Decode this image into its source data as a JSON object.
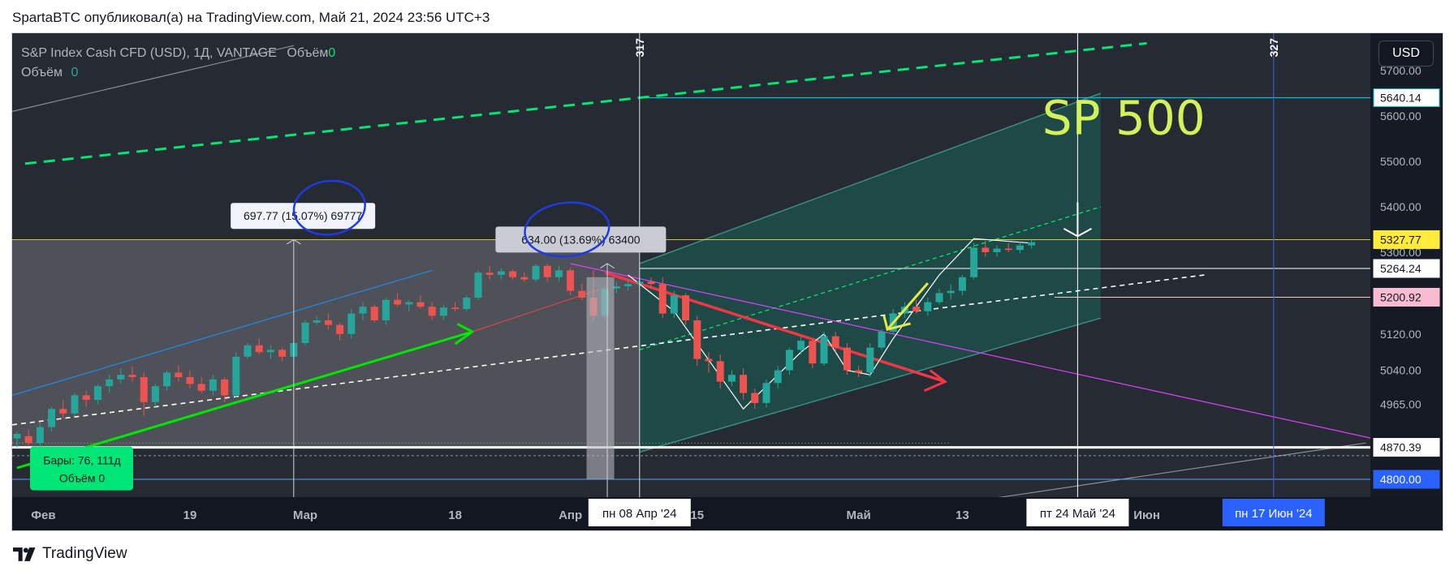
{
  "header": {
    "published": "SpartaBTC опубликовал(а) на TradingView.com, Май 21, 2024 23:56 UTC+3"
  },
  "legend": {
    "symbol": "S&P Index Cash CFD (USD), 1Д, VANTAGE",
    "volume_label": "Объём",
    "volume_value": "0",
    "volume2_label": "Объём",
    "volume2_value": "0"
  },
  "currency_button": "USD",
  "footer": {
    "brand": "TradingView"
  },
  "colors": {
    "up": "#26a69a",
    "down": "#ef5350",
    "green_line": "#00e676",
    "channel_fill": "#1f4f4a",
    "red_arrow": "#f23645",
    "magenta": "#e040fb",
    "cyan": "#00bcd4",
    "yellow_line": "#ffeb3b",
    "sp_label": "#d4f05a",
    "badge_green": "#00e676",
    "badge_blue": "#2962ff"
  },
  "chart_data": {
    "type": "candlestick",
    "title": "SP 500",
    "y_range": [
      4800,
      5760
    ],
    "x_index_range": [
      0,
      122
    ],
    "y_ticks": [
      "5700.00",
      "5600.00",
      "5500.00",
      "5400.00",
      "5300.00",
      "5120.00",
      "5040.00",
      "4965.00"
    ],
    "y_tick_values": [
      5700,
      5600,
      5500,
      5400,
      5300,
      5120,
      5040,
      4965
    ],
    "price_badges": [
      {
        "label": "5640.14",
        "value": 5640.14,
        "style": "cyan"
      },
      {
        "label": "5327.77",
        "value": 5327.77,
        "style": "yellow"
      },
      {
        "label": "5264.24",
        "value": 5264.24,
        "style": "white"
      },
      {
        "label": "5200.92",
        "value": 5200.92,
        "style": "pink"
      },
      {
        "label": "4870.39",
        "value": 4870.39,
        "style": "white"
      },
      {
        "label": "4800.00",
        "value": 4800.0,
        "style": "blue"
      }
    ],
    "x_labels": [
      {
        "label": "Фев",
        "index": 2
      },
      {
        "label": "19",
        "index": 15
      },
      {
        "label": "Мар",
        "index": 25
      },
      {
        "label": "18",
        "index": 38
      },
      {
        "label": "Апр",
        "index": 48
      },
      {
        "label": "15",
        "index": 59
      },
      {
        "label": "Май",
        "index": 73
      },
      {
        "label": "13",
        "index": 82
      },
      {
        "label": "Июн",
        "index": 98
      }
    ],
    "date_badges": [
      {
        "label": "пн 08 Апр '24",
        "index": 54
      },
      {
        "label": "пт 24 Май '24",
        "index": 92
      },
      {
        "label": "пн 17 Июн '24",
        "index": 109
      }
    ],
    "vertical_markers": [
      {
        "label": "317",
        "index": 54
      },
      {
        "label": "327",
        "index": 109
      }
    ],
    "measure_labels": [
      "697.77 (15.07%) 69777",
      "634.00 (13.69%) 63400"
    ],
    "bars_badge": {
      "line1": "Бары: 76, 111д",
      "line2": "Объём 0"
    },
    "candles": [
      [
        0,
        4890,
        4905,
        4870,
        4900
      ],
      [
        1,
        4895,
        4910,
        4875,
        4880
      ],
      [
        2,
        4880,
        4925,
        4870,
        4915
      ],
      [
        3,
        4915,
        4960,
        4905,
        4955
      ],
      [
        4,
        4955,
        4975,
        4935,
        4945
      ],
      [
        5,
        4945,
        4990,
        4940,
        4985
      ],
      [
        6,
        4985,
        4995,
        4960,
        4975
      ],
      [
        7,
        4975,
        5010,
        4965,
        5005
      ],
      [
        8,
        5005,
        5030,
        4990,
        5020
      ],
      [
        9,
        5020,
        5045,
        5010,
        5030
      ],
      [
        10,
        5030,
        5048,
        5015,
        5025
      ],
      [
        11,
        5025,
        5035,
        4940,
        4970
      ],
      [
        12,
        4970,
        5010,
        4960,
        5005
      ],
      [
        13,
        5005,
        5040,
        4995,
        5035
      ],
      [
        14,
        5035,
        5050,
        5015,
        5025
      ],
      [
        15,
        5025,
        5040,
        5000,
        5010
      ],
      [
        16,
        5010,
        5025,
        4990,
        4995
      ],
      [
        17,
        4995,
        5030,
        4985,
        5020
      ],
      [
        18,
        5020,
        5025,
        4970,
        4985
      ],
      [
        19,
        4985,
        5080,
        4980,
        5070
      ],
      [
        20,
        5070,
        5100,
        5065,
        5095
      ],
      [
        21,
        5095,
        5110,
        5075,
        5080
      ],
      [
        22,
        5080,
        5095,
        5065,
        5085
      ],
      [
        23,
        5085,
        5090,
        5060,
        5070
      ],
      [
        24,
        5070,
        5110,
        5060,
        5100
      ],
      [
        25,
        5100,
        5150,
        5095,
        5145
      ],
      [
        26,
        5145,
        5160,
        5140,
        5150
      ],
      [
        27,
        5150,
        5165,
        5130,
        5140
      ],
      [
        28,
        5140,
        5145,
        5105,
        5120
      ],
      [
        29,
        5120,
        5175,
        5110,
        5165
      ],
      [
        30,
        5165,
        5190,
        5150,
        5180
      ],
      [
        31,
        5180,
        5185,
        5145,
        5150
      ],
      [
        32,
        5150,
        5200,
        5140,
        5195
      ],
      [
        33,
        5195,
        5210,
        5180,
        5185
      ],
      [
        34,
        5185,
        5195,
        5170,
        5190
      ],
      [
        35,
        5190,
        5205,
        5175,
        5180
      ],
      [
        36,
        5180,
        5190,
        5150,
        5160
      ],
      [
        37,
        5160,
        5185,
        5150,
        5178
      ],
      [
        38,
        5178,
        5190,
        5170,
        5175
      ],
      [
        39,
        5175,
        5205,
        5170,
        5200
      ],
      [
        40,
        5200,
        5260,
        5195,
        5255
      ],
      [
        41,
        5255,
        5270,
        5240,
        5250
      ],
      [
        42,
        5250,
        5265,
        5240,
        5258
      ],
      [
        43,
        5258,
        5262,
        5240,
        5245
      ],
      [
        44,
        5245,
        5255,
        5235,
        5240
      ],
      [
        45,
        5240,
        5275,
        5235,
        5270
      ],
      [
        46,
        5270,
        5275,
        5235,
        5245
      ],
      [
        47,
        5245,
        5270,
        5235,
        5260
      ],
      [
        48,
        5260,
        5265,
        5205,
        5215
      ],
      [
        49,
        5215,
        5230,
        5195,
        5200
      ],
      [
        50,
        5200,
        5260,
        5150,
        5160
      ],
      [
        51,
        5160,
        5225,
        5150,
        5220
      ],
      [
        52,
        5220,
        5235,
        5210,
        5225
      ],
      [
        53,
        5225,
        5240,
        5215,
        5230
      ],
      [
        54,
        5230,
        5240,
        5215,
        5235
      ],
      [
        55,
        5235,
        5245,
        5220,
        5230
      ],
      [
        56,
        5230,
        5245,
        5155,
        5165
      ],
      [
        57,
        5165,
        5215,
        5155,
        5205
      ],
      [
        58,
        5205,
        5210,
        5140,
        5150
      ],
      [
        59,
        5150,
        5160,
        5050,
        5065
      ],
      [
        60,
        5065,
        5080,
        5035,
        5060
      ],
      [
        61,
        5060,
        5075,
        5000,
        5015
      ],
      [
        62,
        5015,
        5040,
        5005,
        5030
      ],
      [
        63,
        5030,
        5045,
        4975,
        4990
      ],
      [
        64,
        4990,
        5000,
        4955,
        4968
      ],
      [
        65,
        4968,
        5020,
        4958,
        5012
      ],
      [
        66,
        5012,
        5050,
        5000,
        5040
      ],
      [
        67,
        5040,
        5090,
        5030,
        5085
      ],
      [
        68,
        5085,
        5115,
        5075,
        5105
      ],
      [
        69,
        5105,
        5110,
        5045,
        5055
      ],
      [
        70,
        5055,
        5125,
        5050,
        5115
      ],
      [
        71,
        5115,
        5125,
        5080,
        5090
      ],
      [
        72,
        5090,
        5100,
        5030,
        5040
      ],
      [
        73,
        5040,
        5050,
        5025,
        5035
      ],
      [
        74,
        5035,
        5100,
        5025,
        5090
      ],
      [
        75,
        5090,
        5130,
        5085,
        5125
      ],
      [
        76,
        5125,
        5175,
        5120,
        5165
      ],
      [
        77,
        5165,
        5190,
        5155,
        5180
      ],
      [
        78,
        5180,
        5195,
        5165,
        5170
      ],
      [
        79,
        5170,
        5200,
        5160,
        5190
      ],
      [
        80,
        5190,
        5220,
        5185,
        5210
      ],
      [
        81,
        5210,
        5230,
        5195,
        5215
      ],
      [
        82,
        5215,
        5250,
        5205,
        5245
      ],
      [
        83,
        5245,
        5320,
        5240,
        5310
      ],
      [
        84,
        5310,
        5325,
        5290,
        5300
      ],
      [
        85,
        5300,
        5315,
        5290,
        5308
      ],
      [
        86,
        5308,
        5320,
        5300,
        5305
      ],
      [
        87,
        5305,
        5322,
        5298,
        5315
      ],
      [
        88,
        5315,
        5330,
        5308,
        5322
      ]
    ]
  }
}
